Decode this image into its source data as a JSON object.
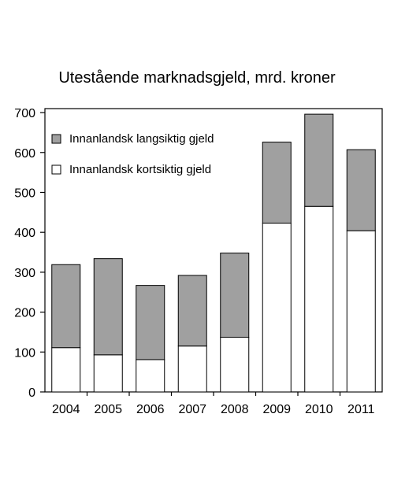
{
  "chart_data": {
    "type": "bar",
    "stacked": true,
    "title": "Utestående marknadsgjeld, mrd. kroner",
    "xlabel": "",
    "ylabel": "",
    "categories": [
      "2004",
      "2005",
      "2006",
      "2007",
      "2008",
      "2009",
      "2010",
      "2011"
    ],
    "series": [
      {
        "name": "Innanlandsk kortsiktig gjeld",
        "values": [
          111,
          93,
          81,
          115,
          137,
          423,
          465,
          404
        ],
        "color": "#ffffff"
      },
      {
        "name": "Innanlandsk langsiktig gjeld",
        "values": [
          208,
          241,
          186,
          177,
          211,
          203,
          231,
          203
        ],
        "color": "#a0a0a0"
      }
    ],
    "legend_order": [
      "Innanlandsk langsiktig gjeld",
      "Innanlandsk kortsiktig gjeld"
    ],
    "legend_placement": "top-left",
    "yticks": [
      0,
      100,
      200,
      300,
      400,
      500,
      600,
      700
    ],
    "ylim": [
      0,
      710
    ],
    "grid": false
  }
}
